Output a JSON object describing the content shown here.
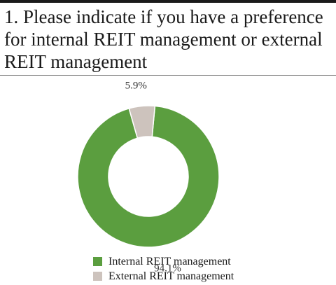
{
  "header": {
    "title": "1. Please indicate if you have a preference for internal REIT management or external REIT management"
  },
  "chart_data": {
    "type": "pie",
    "donut": true,
    "categories": [
      "Internal REIT management",
      "External REIT management"
    ],
    "values": [
      94.1,
      5.9
    ],
    "value_labels": [
      "94.1%",
      "5.9%"
    ],
    "colors": [
      "#5b9e3f",
      "#cdc3bd"
    ],
    "legend_position": "bottom"
  }
}
